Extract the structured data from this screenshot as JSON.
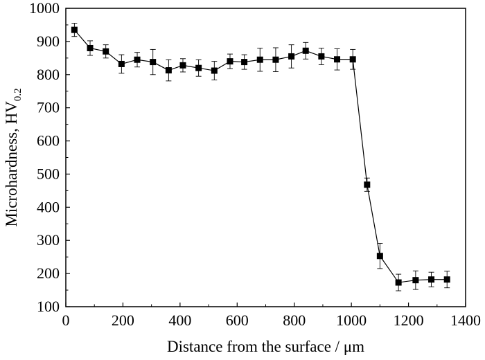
{
  "chart_data": {
    "type": "line",
    "xlabel": "Distance from the surface / μm",
    "ylabel": "Microhardness, HV",
    "ylabel_subscript": "0.2",
    "xlim": [
      0,
      1400
    ],
    "ylim": [
      100,
      1000
    ],
    "xticks": [
      0,
      200,
      400,
      600,
      800,
      1000,
      1200,
      1400
    ],
    "yticks": [
      100,
      200,
      300,
      400,
      500,
      600,
      700,
      800,
      900,
      1000
    ],
    "grid": false,
    "marker": "square",
    "color": "#000000",
    "series": [
      {
        "x": [
          30,
          85,
          140,
          195,
          250,
          305,
          360,
          410,
          465,
          520,
          575,
          625,
          680,
          735,
          790,
          840,
          895,
          950,
          1005,
          1055,
          1100,
          1165,
          1225,
          1280,
          1335
        ],
        "y": [
          935,
          880,
          870,
          832,
          845,
          838,
          813,
          828,
          820,
          812,
          840,
          838,
          845,
          845,
          855,
          872,
          855,
          846,
          846,
          468,
          253,
          173,
          180,
          182,
          182
        ],
        "err": [
          20,
          22,
          20,
          28,
          22,
          38,
          32,
          20,
          25,
          28,
          22,
          22,
          35,
          36,
          35,
          25,
          25,
          32,
          30,
          20,
          38,
          25,
          28,
          22,
          25
        ]
      }
    ]
  }
}
